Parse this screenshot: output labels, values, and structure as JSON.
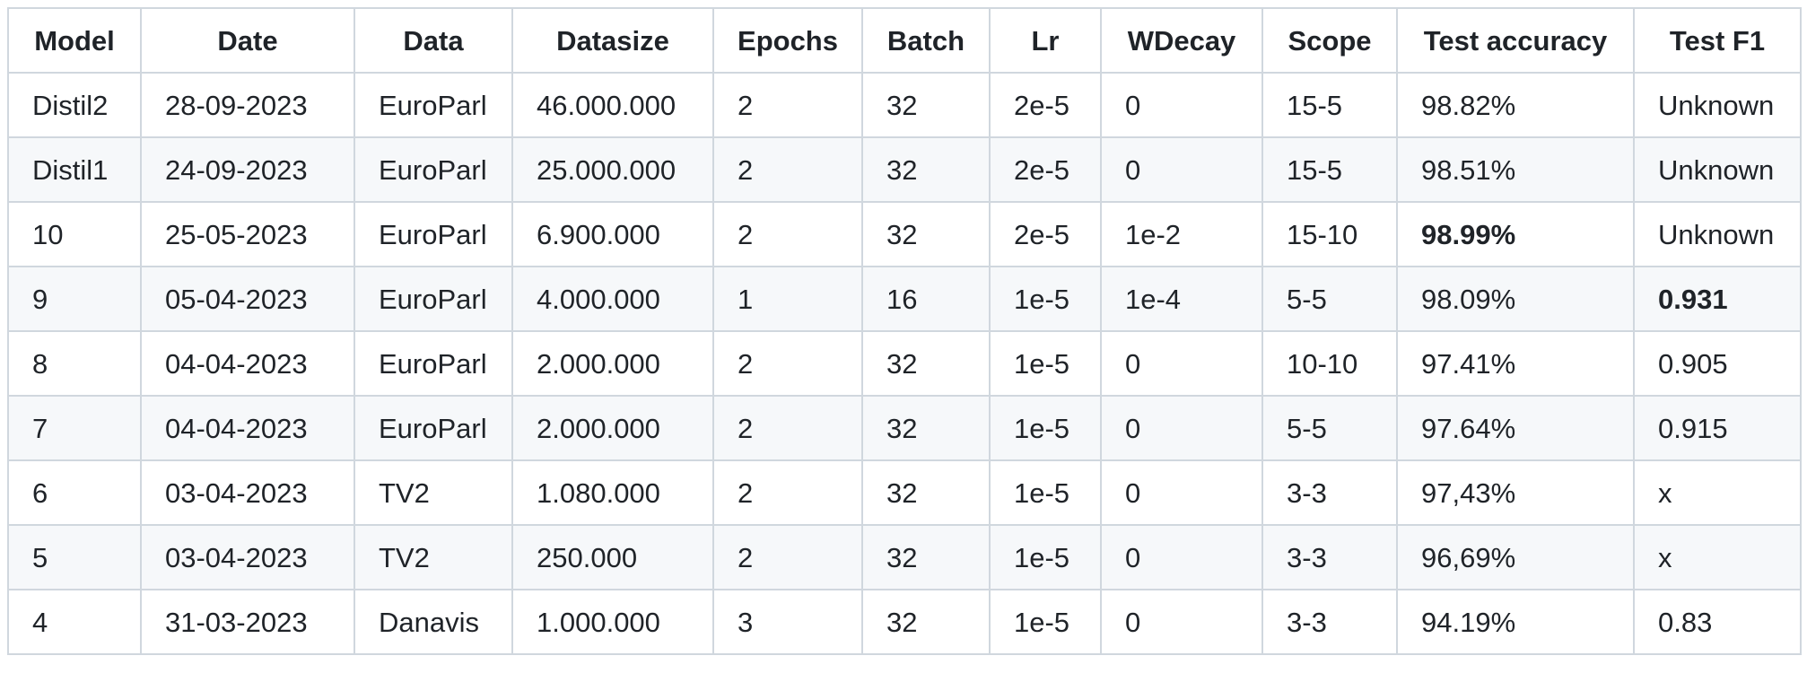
{
  "table": {
    "headers": [
      "Model",
      "Date",
      "Data",
      "Datasize",
      "Epochs",
      "Batch",
      "Lr",
      "WDecay",
      "Scope",
      "Test accuracy",
      "Test F1"
    ],
    "rows": [
      [
        "Distil2",
        "28-09-2023",
        "EuroParl",
        "46.000.000",
        "2",
        "32",
        "2e-5",
        "0",
        "15-5",
        "98.82%",
        "Unknown"
      ],
      [
        "Distil1",
        "24-09-2023",
        "EuroParl",
        "25.000.000",
        "2",
        "32",
        "2e-5",
        "0",
        "15-5",
        "98.51%",
        "Unknown"
      ],
      [
        "10",
        "25-05-2023",
        "EuroParl",
        "6.900.000",
        "2",
        "32",
        "2e-5",
        "1e-2",
        "15-10",
        "98.99%",
        "Unknown"
      ],
      [
        "9",
        "05-04-2023",
        "EuroParl",
        "4.000.000",
        "1",
        "16",
        "1e-5",
        "1e-4",
        "5-5",
        "98.09%",
        "0.931"
      ],
      [
        "8",
        "04-04-2023",
        "EuroParl",
        "2.000.000",
        "2",
        "32",
        "1e-5",
        "0",
        "10-10",
        "97.41%",
        "0.905"
      ],
      [
        "7",
        "04-04-2023",
        "EuroParl",
        "2.000.000",
        "2",
        "32",
        "1e-5",
        "0",
        "5-5",
        "97.64%",
        "0.915"
      ],
      [
        "6",
        "03-04-2023",
        "TV2",
        "1.080.000",
        "2",
        "32",
        "1e-5",
        "0",
        "3-3",
        "97,43%",
        "x"
      ],
      [
        "5",
        "03-04-2023",
        "TV2",
        "250.000",
        "2",
        "32",
        "1e-5",
        "0",
        "3-3",
        "96,69%",
        "x"
      ],
      [
        "4",
        "31-03-2023",
        "Danavis",
        "1.000.000",
        "3",
        "32",
        "1e-5",
        "0",
        "3-3",
        "94.19%",
        "0.83"
      ]
    ],
    "bold_cells": [
      [
        2,
        9
      ],
      [
        3,
        10
      ]
    ],
    "colors": {
      "border": "#d0d7de",
      "stripe": "#f6f8fa",
      "text": "#1f2328"
    }
  }
}
